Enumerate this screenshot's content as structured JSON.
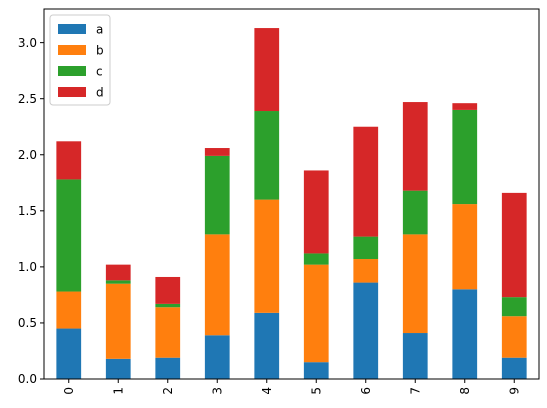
{
  "chart_data": {
    "type": "bar",
    "stacked": true,
    "categories": [
      "0",
      "1",
      "2",
      "3",
      "4",
      "5",
      "6",
      "7",
      "8",
      "9"
    ],
    "series": [
      {
        "name": "a",
        "color": "#1f77b4",
        "values": [
          0.45,
          0.18,
          0.19,
          0.39,
          0.59,
          0.15,
          0.86,
          0.41,
          0.8,
          0.19
        ]
      },
      {
        "name": "b",
        "color": "#ff7f0e",
        "values": [
          0.33,
          0.67,
          0.45,
          0.9,
          1.01,
          0.87,
          0.21,
          0.88,
          0.76,
          0.37
        ]
      },
      {
        "name": "c",
        "color": "#2ca02c",
        "values": [
          1.0,
          0.03,
          0.03,
          0.7,
          0.79,
          0.1,
          0.2,
          0.39,
          0.84,
          0.17
        ]
      },
      {
        "name": "d",
        "color": "#d62728",
        "values": [
          0.34,
          0.14,
          0.24,
          0.07,
          0.74,
          0.74,
          0.98,
          0.79,
          0.06,
          0.93
        ]
      }
    ],
    "yticks": [
      "0.0",
      "0.5",
      "1.0",
      "1.5",
      "2.0",
      "2.5",
      "3.0"
    ],
    "ylim": [
      0,
      3.3
    ],
    "grid": false,
    "legend_position": "top-left",
    "title": "",
    "xlabel": "",
    "ylabel": ""
  }
}
